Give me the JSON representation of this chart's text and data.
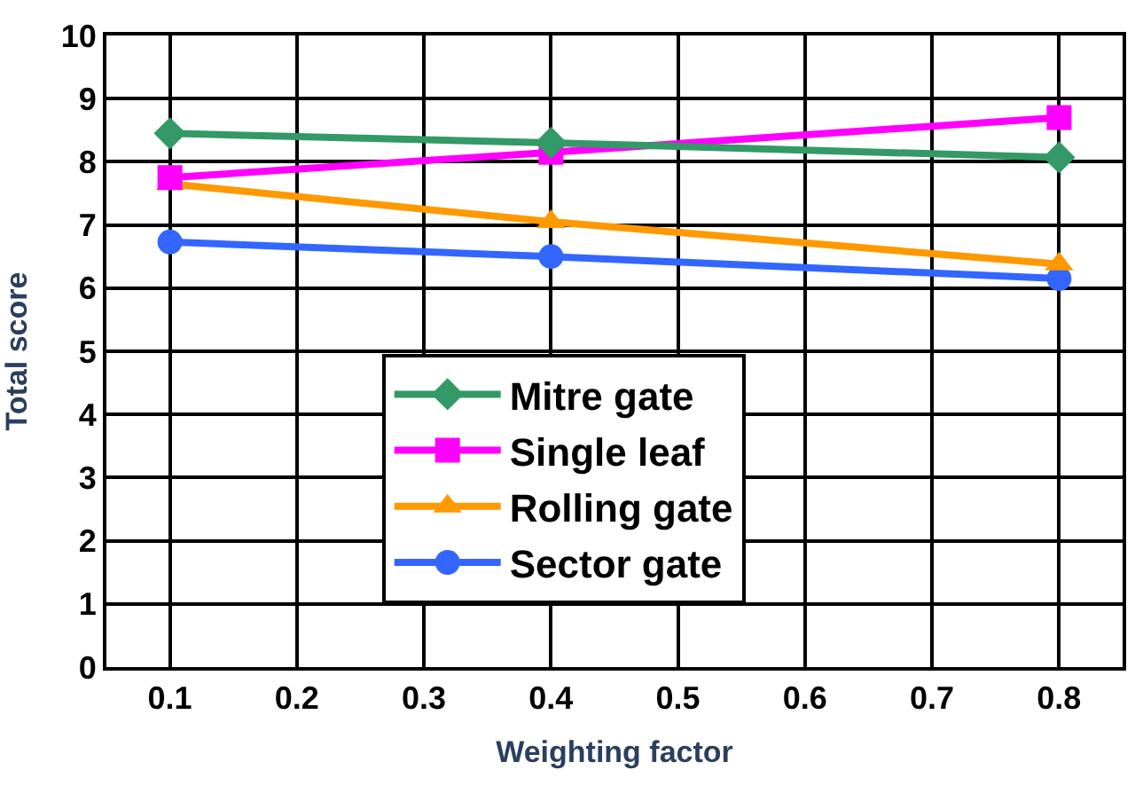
{
  "chart_data": {
    "type": "line",
    "xlabel": "Weighting factor",
    "ylabel": "Total score",
    "x": [
      0.1,
      0.4,
      0.8
    ],
    "series": [
      {
        "name": "Mitre gate",
        "color": "#339966",
        "marker": "diamond",
        "values": [
          8.45,
          8.3,
          8.07
        ]
      },
      {
        "name": "Single leaf",
        "color": "#ff00ff",
        "marker": "square",
        "values": [
          7.75,
          8.15,
          8.7
        ]
      },
      {
        "name": "Rolling gate",
        "color": "#ff9900",
        "marker": "triangle",
        "values": [
          7.65,
          7.05,
          6.38
        ]
      },
      {
        "name": "Sector gate",
        "color": "#3366ff",
        "marker": "circle",
        "values": [
          6.73,
          6.5,
          6.15
        ]
      }
    ],
    "xlim": [
      0.05,
      0.85
    ],
    "xticks": [
      0.1,
      0.2,
      0.3,
      0.4,
      0.5,
      0.6,
      0.7,
      0.8
    ],
    "ylim": [
      0,
      10
    ],
    "yticks": [
      0,
      1,
      2,
      3,
      4,
      5,
      6,
      7,
      8,
      9,
      10
    ],
    "grid": true,
    "legend": "bottom",
    "line_style": "solid"
  }
}
